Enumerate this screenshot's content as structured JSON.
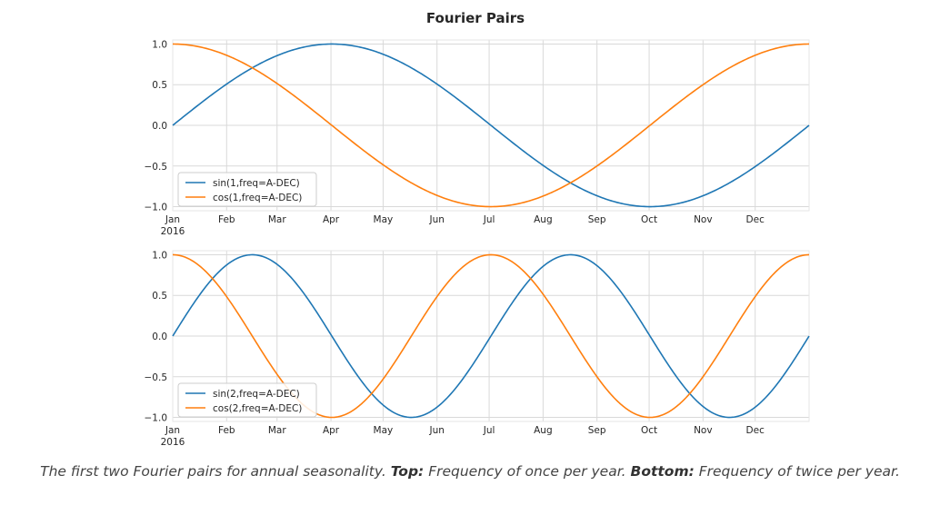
{
  "figure": {
    "title": "Fourier Pairs",
    "colors": {
      "sin": "#1f77b4",
      "cos": "#ff7f0e",
      "grid": "#d9d9d9"
    }
  },
  "caption": {
    "intro": "The first two Fourier pairs for annual seasonality.",
    "top_label": "Top:",
    "top_text": "Frequency of once per year.",
    "bottom_label": "Bottom:",
    "bottom_text": "Frequency of twice per year."
  },
  "chart_data": [
    {
      "type": "line",
      "title": "Fourier Pairs",
      "x_domain_days": [
        0,
        366
      ],
      "ylim": [
        -1.05,
        1.05
      ],
      "grid": true,
      "legend_placement": "lower-left",
      "x_ticks": [
        {
          "label": "Jan",
          "sub": "2016",
          "day": 0
        },
        {
          "label": "Feb",
          "day": 31
        },
        {
          "label": "Mar",
          "day": 60
        },
        {
          "label": "Apr",
          "day": 91
        },
        {
          "label": "May",
          "day": 121
        },
        {
          "label": "Jun",
          "day": 152
        },
        {
          "label": "Jul",
          "day": 182
        },
        {
          "label": "Aug",
          "day": 213
        },
        {
          "label": "Sep",
          "day": 244
        },
        {
          "label": "Oct",
          "day": 274
        },
        {
          "label": "Nov",
          "day": 305
        },
        {
          "label": "Dec",
          "day": 335
        }
      ],
      "y_ticks": [
        {
          "label": "1.0",
          "value": 1.0
        },
        {
          "label": "0.5",
          "value": 0.5
        },
        {
          "label": "0.0",
          "value": 0.0
        },
        {
          "label": "−0.5",
          "value": -0.5
        },
        {
          "label": "−1.0",
          "value": -1.0
        }
      ],
      "series": [
        {
          "name": "sin(1,freq=A-DEC)",
          "function": "sin",
          "frequency_per_year": 1,
          "color": "#1f77b4"
        },
        {
          "name": "cos(1,freq=A-DEC)",
          "function": "cos",
          "frequency_per_year": 1,
          "color": "#ff7f0e"
        }
      ]
    },
    {
      "type": "line",
      "x_domain_days": [
        0,
        366
      ],
      "ylim": [
        -1.05,
        1.05
      ],
      "grid": true,
      "legend_placement": "lower-left",
      "x_ticks": [
        {
          "label": "Jan",
          "sub": "2016",
          "day": 0
        },
        {
          "label": "Feb",
          "day": 31
        },
        {
          "label": "Mar",
          "day": 60
        },
        {
          "label": "Apr",
          "day": 91
        },
        {
          "label": "May",
          "day": 121
        },
        {
          "label": "Jun",
          "day": 152
        },
        {
          "label": "Jul",
          "day": 182
        },
        {
          "label": "Aug",
          "day": 213
        },
        {
          "label": "Sep",
          "day": 244
        },
        {
          "label": "Oct",
          "day": 274
        },
        {
          "label": "Nov",
          "day": 305
        },
        {
          "label": "Dec",
          "day": 335
        }
      ],
      "y_ticks": [
        {
          "label": "1.0",
          "value": 1.0
        },
        {
          "label": "0.5",
          "value": 0.5
        },
        {
          "label": "0.0",
          "value": 0.0
        },
        {
          "label": "−0.5",
          "value": -0.5
        },
        {
          "label": "−1.0",
          "value": -1.0
        }
      ],
      "series": [
        {
          "name": "sin(2,freq=A-DEC)",
          "function": "sin",
          "frequency_per_year": 2,
          "color": "#1f77b4"
        },
        {
          "name": "cos(2,freq=A-DEC)",
          "function": "cos",
          "frequency_per_year": 2,
          "color": "#ff7f0e"
        }
      ]
    }
  ]
}
